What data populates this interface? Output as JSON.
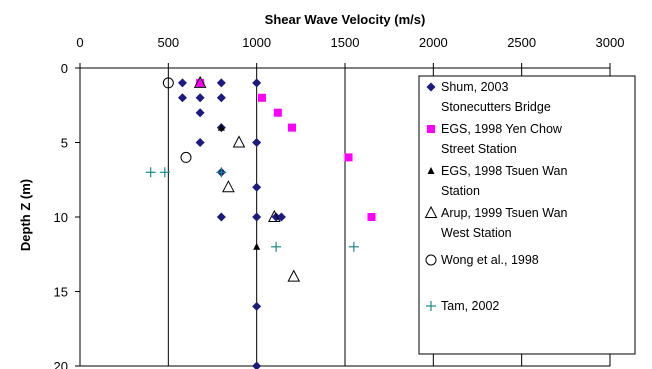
{
  "chart_data": {
    "type": "scatter",
    "title": "",
    "xlabel": "Shear Wave Velocity (m/s)",
    "ylabel": "Depth Z (m)",
    "xlim": [
      0,
      3000
    ],
    "ylim": [
      0,
      20
    ],
    "y_reversed": true,
    "x_axis_position": "top",
    "x_ticks": [
      "0",
      "500",
      "1000",
      "1500",
      "2000",
      "2500",
      "3000"
    ],
    "y_ticks": [
      "0",
      "5",
      "10",
      "15",
      "20"
    ],
    "grid": "vertical",
    "legend_position": "right",
    "series": [
      {
        "name_lines": [
          "Shum, 2003",
          "Stonecutters Bridge"
        ],
        "marker": "diamond",
        "color": "#1a1a80",
        "x": [
          580,
          680,
          800,
          1000,
          580,
          680,
          800,
          680,
          800,
          680,
          1000,
          800,
          1000,
          800,
          1000,
          1110,
          1140,
          1000,
          1000
        ],
        "y": [
          1,
          1,
          1,
          1,
          2,
          2,
          2,
          3,
          4,
          5,
          5,
          7,
          8,
          10,
          10,
          10,
          10,
          16,
          20
        ]
      },
      {
        "name_lines": [
          "EGS, 1998 Yen Chow",
          "Street Station"
        ],
        "marker": "square",
        "color": "#ff00ff",
        "x": [
          680,
          1030,
          1120,
          1200,
          1520,
          1650
        ],
        "y": [
          1,
          2,
          3,
          4,
          6,
          10
        ]
      },
      {
        "name_lines": [
          "EGS, 1998 Tsuen Wan",
          "Station"
        ],
        "marker": "triangle",
        "color": "#000000",
        "x": [
          800,
          1000
        ],
        "y": [
          4,
          12
        ]
      },
      {
        "name_lines": [
          "Arup, 1999 Tsuen Wan",
          "West Station"
        ],
        "marker": "triangle-open",
        "color": "#000000",
        "x": [
          680,
          900,
          840,
          1100,
          1210
        ],
        "y": [
          1,
          5,
          8,
          10,
          14
        ]
      },
      {
        "name_lines": [
          "Wong et al., 1998"
        ],
        "marker": "circle-open",
        "color": "#000000",
        "x": [
          500,
          600
        ],
        "y": [
          1,
          6
        ]
      },
      {
        "name_lines": [
          "Tam, 2002"
        ],
        "marker": "plus",
        "color": "#1a8a8a",
        "x": [
          400,
          480,
          800,
          1110,
          1550
        ],
        "y": [
          7,
          7,
          7,
          12,
          12
        ]
      }
    ]
  }
}
